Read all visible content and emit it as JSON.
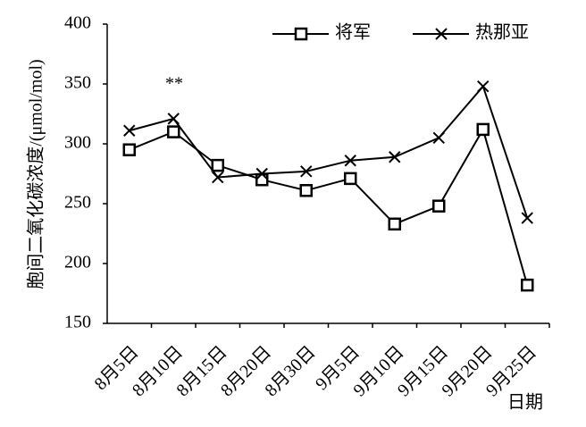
{
  "chart_data": {
    "type": "line",
    "y_label": "胞间二氧化碳浓度/(μmol/mol)",
    "x_label": "日期",
    "categories": [
      "8月5日",
      "8月10日",
      "8月15日",
      "8月20日",
      "8月30日",
      "9月5日",
      "9月10日",
      "9月15日",
      "9月20日",
      "9月25日"
    ],
    "series": [
      {
        "name": "将军",
        "color": "#000000",
        "marker": "square",
        "values": [
          295,
          310,
          282,
          270,
          261,
          271,
          233,
          248,
          312,
          182
        ]
      },
      {
        "name": "热那亚",
        "color": "#000000",
        "marker": "x",
        "values": [
          311,
          321,
          272,
          275,
          277,
          286,
          289,
          305,
          348,
          238
        ]
      }
    ],
    "annotations": [
      {
        "text": "**"
      }
    ],
    "ylim": [
      150,
      400
    ],
    "yticks": [
      150,
      200,
      250,
      300,
      350,
      400
    ],
    "legend": "top-right"
  }
}
